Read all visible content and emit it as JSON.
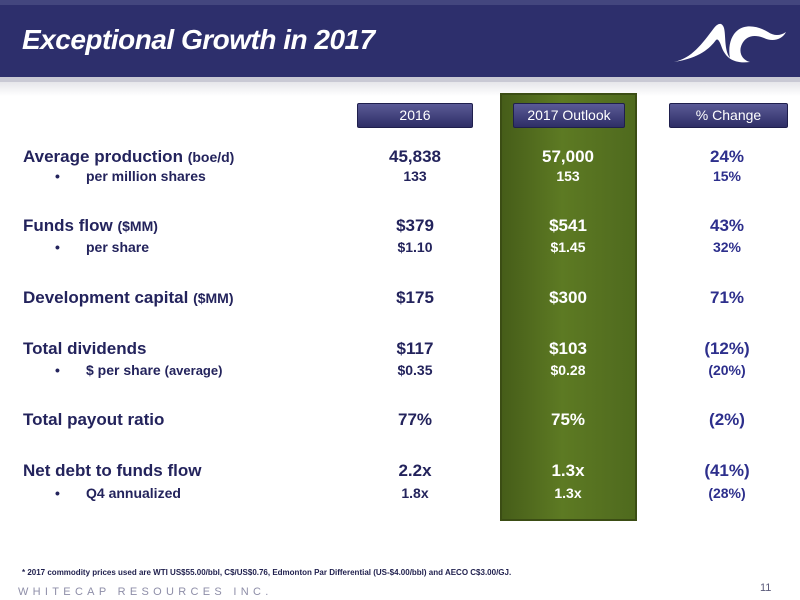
{
  "header": {
    "title": "Exceptional Growth in 2017"
  },
  "columns": {
    "c2016": "2016",
    "outlook": "2017 Outlook",
    "change": "% Change"
  },
  "rows": {
    "prod": {
      "label": "Average production",
      "unit": "(boe/d)",
      "v2016": "45,838",
      "outlook": "57,000",
      "change": "24%"
    },
    "prodps": {
      "label": "per million shares",
      "unit": "",
      "v2016": "133",
      "outlook": "153",
      "change": "15%"
    },
    "ff": {
      "label": "Funds flow",
      "unit": "($MM)",
      "v2016": "$379",
      "outlook": "$541",
      "change": "43%"
    },
    "ffps": {
      "label": "per share",
      "unit": "",
      "v2016": "$1.10",
      "outlook": "$1.45",
      "change": "32%"
    },
    "dev": {
      "label": "Development capital",
      "unit": "($MM)",
      "v2016": "$175",
      "outlook": "$300",
      "change": "71%"
    },
    "div": {
      "label": "Total dividends",
      "unit": "",
      "v2016": "$117",
      "outlook": "$103",
      "change": "(12%)"
    },
    "divps": {
      "label": "$ per share",
      "unit": "(average)",
      "v2016": "$0.35",
      "outlook": "$0.28",
      "change": "(20%)"
    },
    "payout": {
      "label": "Total payout ratio",
      "unit": "",
      "v2016": "77%",
      "outlook": "75%",
      "change": "(2%)"
    },
    "debt": {
      "label": "Net debt to funds flow",
      "unit": "",
      "v2016": "2.2x",
      "outlook": "1.3x",
      "change": "(41%)"
    },
    "debtq4": {
      "label": "Q4 annualized",
      "unit": "",
      "v2016": "1.8x",
      "outlook": "1.3x",
      "change": "(28%)"
    }
  },
  "bullet": "•",
  "footer": {
    "note": "* 2017 commodity prices used are WTI US$55.00/bbl, C$/US$0.76, Edmonton Par Differential (US-$4.00/bbl) and AECO C$3.00/GJ.",
    "company": "WHITECAP RESOURCES INC.",
    "page": "11"
  },
  "colors": {
    "header": "#2d2f6c",
    "outlook_column": "#5d7a23",
    "label_text": "#23235c"
  },
  "icons": {
    "logo": "whitecap-wave-logo"
  }
}
